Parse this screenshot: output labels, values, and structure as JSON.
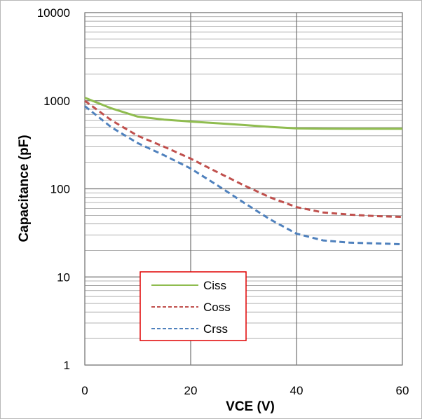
{
  "chart_data": {
    "type": "line",
    "title": "",
    "xlabel": "VCE  (V)",
    "ylabel": "Capacitance  (pF)",
    "xlim": [
      0,
      60
    ],
    "ylim": [
      1,
      10000
    ],
    "yscale": "log",
    "grid": true,
    "x_ticks": [
      "0",
      "20",
      "40",
      "60"
    ],
    "y_ticks": [
      "1",
      "10",
      "100",
      "1000",
      "10000"
    ],
    "legend_position": "lower-left",
    "series": [
      {
        "name": "Ciss",
        "color": "#8fbc4f",
        "style": "solid",
        "x": [
          0,
          5,
          10,
          15,
          20,
          25,
          30,
          35,
          40,
          45,
          50,
          55,
          60
        ],
        "y": [
          1080,
          820,
          660,
          610,
          580,
          555,
          530,
          505,
          485,
          482,
          480,
          480,
          480
        ]
      },
      {
        "name": "Coss",
        "color": "#c0504d",
        "style": "dashed",
        "x": [
          0,
          5,
          10,
          15,
          20,
          25,
          30,
          35,
          40,
          45,
          50,
          55,
          60
        ],
        "y": [
          1000,
          600,
          400,
          300,
          220,
          155,
          110,
          80,
          62,
          54,
          51,
          49,
          48
        ]
      },
      {
        "name": "Crss",
        "color": "#4f81bd",
        "style": "dashed",
        "x": [
          0,
          5,
          10,
          15,
          20,
          25,
          30,
          35,
          40,
          45,
          50,
          55,
          60
        ],
        "y": [
          870,
          500,
          330,
          240,
          170,
          110,
          70,
          45,
          31,
          26,
          24.5,
          24,
          23.5
        ]
      }
    ]
  }
}
